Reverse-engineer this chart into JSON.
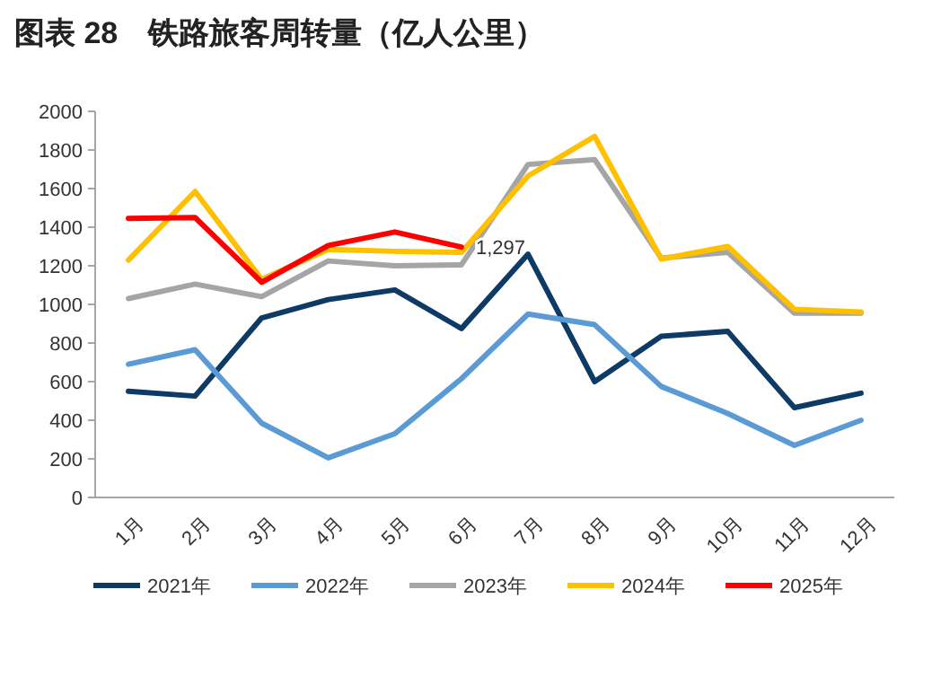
{
  "chart_data": {
    "type": "line",
    "title": "图表 28　铁路旅客周转量（亿人公里）",
    "categories": [
      "1月",
      "2月",
      "3月",
      "4月",
      "5月",
      "6月",
      "7月",
      "8月",
      "9月",
      "10月",
      "11月",
      "12月"
    ],
    "ylim": [
      0,
      2000
    ],
    "yticks": [
      0,
      200,
      400,
      600,
      800,
      1000,
      1200,
      1400,
      1600,
      1800,
      2000
    ],
    "grid": false,
    "legend": "bottom",
    "marker": "none",
    "line_style": "solid",
    "series": [
      {
        "name": "2021年",
        "color": "#0e3a66",
        "values": [
          550,
          525,
          930,
          1025,
          1075,
          875,
          1260,
          600,
          835,
          860,
          465,
          540
        ]
      },
      {
        "name": "2022年",
        "color": "#5b9bd5",
        "values": [
          690,
          765,
          385,
          205,
          330,
          615,
          950,
          895,
          575,
          435,
          270,
          400
        ]
      },
      {
        "name": "2023年",
        "color": "#a5a5a5",
        "values": [
          1030,
          1105,
          1040,
          1225,
          1200,
          1205,
          1725,
          1750,
          1240,
          1270,
          955,
          955
        ]
      },
      {
        "name": "2024年",
        "color": "#ffc000",
        "values": [
          1230,
          1585,
          1130,
          1285,
          1275,
          1270,
          1665,
          1870,
          1235,
          1300,
          975,
          960
        ]
      },
      {
        "name": "2025年",
        "color": "#ff0000",
        "values": [
          1445,
          1450,
          1115,
          1305,
          1375,
          1297,
          null,
          null,
          null,
          null,
          null,
          null
        ],
        "value_labels": [
          null,
          null,
          null,
          null,
          null,
          "1,297",
          null,
          null,
          null,
          null,
          null,
          null
        ]
      }
    ]
  }
}
